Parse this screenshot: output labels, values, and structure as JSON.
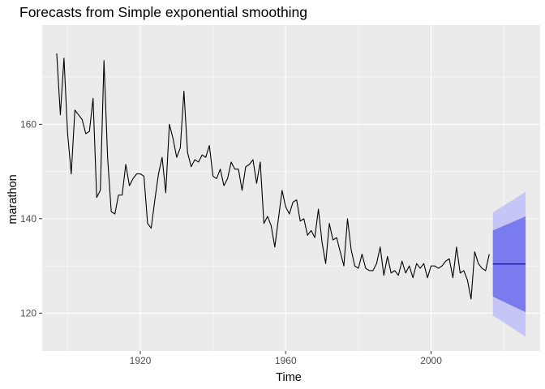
{
  "chart_data": {
    "type": "line",
    "title": "Forecasts from Simple exponential smoothing",
    "xlabel": "Time",
    "ylabel": "marathon",
    "xlim": [
      1893,
      2030
    ],
    "ylim": [
      112,
      181
    ],
    "x_ticks": [
      1920,
      1960,
      2000
    ],
    "y_ticks": [
      120,
      140,
      160
    ],
    "grid": true,
    "legend": "none",
    "colors": {
      "panel": "#ebebeb",
      "grid_major": "#ffffff",
      "series": "#000000",
      "band_80": "#7b7bf0",
      "band_95": "#c6c6f6",
      "forecast": "#0000aa"
    },
    "series": [
      {
        "x": [
          1897,
          1898,
          1899,
          1900,
          1901,
          1902,
          1903,
          1904,
          1905,
          1906,
          1907,
          1908,
          1909,
          1910,
          1911,
          1912,
          1913,
          1914,
          1915,
          1916,
          1917,
          1918,
          1919,
          1920,
          1921,
          1922,
          1923,
          1924,
          1925,
          1926,
          1927,
          1928,
          1929,
          1930,
          1931,
          1932,
          1933,
          1934,
          1935,
          1936,
          1937,
          1938,
          1939,
          1940,
          1941,
          1942,
          1943,
          1944,
          1945,
          1946,
          1947,
          1948,
          1949,
          1950,
          1951,
          1952,
          1953,
          1954,
          1955,
          1956,
          1957,
          1958,
          1959,
          1960,
          1961,
          1962,
          1963,
          1964,
          1965,
          1966,
          1967,
          1968,
          1969,
          1970,
          1971,
          1972,
          1973,
          1974,
          1975,
          1976,
          1977,
          1978,
          1979,
          1980,
          1981,
          1982,
          1983,
          1984,
          1985,
          1986,
          1987,
          1988,
          1989,
          1990,
          1991,
          1992,
          1993,
          1994,
          1995,
          1996,
          1997,
          1998,
          1999,
          2000,
          2001,
          2002,
          2003,
          2004,
          2005,
          2006,
          2007,
          2008,
          2009,
          2010,
          2011,
          2012,
          2013,
          2014,
          2015,
          2016
        ],
        "values": [
          175,
          162,
          174,
          158,
          149.5,
          163,
          162,
          161,
          158,
          158.5,
          165.5,
          144.5,
          146,
          173.5,
          153,
          141.5,
          141,
          145,
          145,
          151.5,
          147,
          148.5,
          149.5,
          149.5,
          149,
          139,
          138,
          144,
          149.5,
          153,
          145.5,
          160,
          157,
          153,
          155,
          167,
          154,
          151,
          152.5,
          152,
          153.5,
          153,
          155.5,
          149,
          148.5,
          150.5,
          147,
          148.5,
          152,
          150.5,
          150.5,
          146,
          151,
          151.5,
          152.5,
          147.5,
          152,
          139,
          140.5,
          138.5,
          134,
          140,
          146,
          142.5,
          141,
          143.5,
          144,
          139.5,
          140,
          136.5,
          137.5,
          136,
          142,
          135,
          130.5,
          139,
          135.5,
          136,
          133,
          130,
          140,
          133.5,
          130,
          129.5,
          132.5,
          129.5,
          129,
          129,
          130.5,
          134,
          128,
          132,
          128.5,
          129,
          128,
          131,
          128.5,
          130,
          127.5,
          130.5,
          129.5,
          130.5,
          127.5,
          130,
          130,
          129.5,
          130,
          131,
          131.5,
          127.5,
          134,
          128.5,
          129,
          127,
          123,
          133,
          130.5,
          129.5,
          129,
          132.5
        ]
      }
    ],
    "forecast": {
      "x": [
        2017,
        2026
      ],
      "point": [
        130.4,
        130.4
      ],
      "lo80": [
        123.5,
        120.2
      ],
      "hi80": [
        137.5,
        140.5
      ],
      "lo95": [
        119.5,
        115.0
      ],
      "hi95": [
        141.3,
        145.7
      ]
    }
  }
}
